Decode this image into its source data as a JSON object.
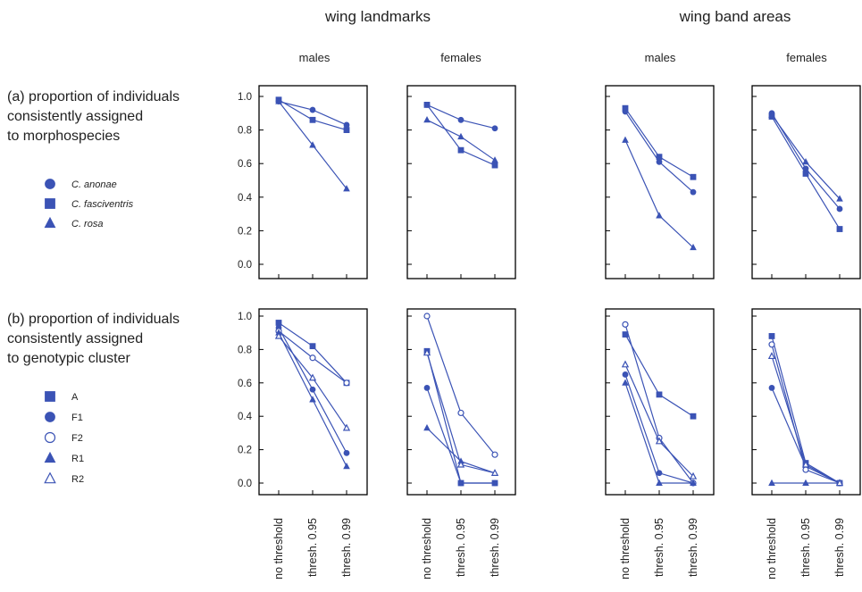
{
  "colors": {
    "series": "#3b53b5",
    "text": "#222222",
    "axis": "#000000"
  },
  "column_titles": [
    "wing landmarks",
    "wing band areas"
  ],
  "panel_subtitles": [
    "males",
    "females",
    "males",
    "females"
  ],
  "row_labels": {
    "a": [
      "(a) proportion of individuals",
      "consistently assigned",
      "to morphospecies"
    ],
    "b": [
      "(b) proportion of individuals",
      "consistently assigned",
      "to genotypic cluster"
    ]
  },
  "legend_a": [
    {
      "label": "C. anonae",
      "marker": "circle-filled",
      "italic": true
    },
    {
      "label": "C. fasciventris",
      "marker": "square-filled",
      "italic": true
    },
    {
      "label": "C. rosa",
      "marker": "triangle-filled",
      "italic": true
    }
  ],
  "legend_b": [
    {
      "label": "A",
      "marker": "square-filled",
      "italic": false
    },
    {
      "label": "F1",
      "marker": "circle-filled",
      "italic": false
    },
    {
      "label": "F2",
      "marker": "circle-open",
      "italic": false
    },
    {
      "label": "R1",
      "marker": "triangle-filled",
      "italic": false
    },
    {
      "label": "R2",
      "marker": "triangle-open",
      "italic": false
    }
  ],
  "chart_data": [
    {
      "type": "line",
      "row": "a",
      "column": "wing landmarks",
      "subtitle": "males",
      "categories": [
        "no threshold",
        "thresh. 0.95",
        "thresh. 0.99"
      ],
      "ylim": [
        0,
        1
      ],
      "yticks": [
        "0.0",
        "0.2",
        "0.4",
        "0.6",
        "0.8",
        "1.0"
      ],
      "series": [
        {
          "name": "C. anonae",
          "marker": "circle-filled",
          "values": [
            0.97,
            0.92,
            0.83
          ]
        },
        {
          "name": "C. fasciventris",
          "marker": "square-filled",
          "values": [
            0.98,
            0.86,
            0.8
          ]
        },
        {
          "name": "C. rosa",
          "marker": "triangle-filled",
          "values": [
            0.97,
            0.71,
            0.45
          ]
        }
      ]
    },
    {
      "type": "line",
      "row": "a",
      "column": "wing landmarks",
      "subtitle": "females",
      "categories": [
        "no threshold",
        "thresh. 0.95",
        "thresh. 0.99"
      ],
      "ylim": [
        0,
        1
      ],
      "series": [
        {
          "name": "C. anonae",
          "marker": "circle-filled",
          "values": [
            0.95,
            0.86,
            0.81
          ]
        },
        {
          "name": "C. fasciventris",
          "marker": "square-filled",
          "values": [
            0.95,
            0.68,
            0.59
          ]
        },
        {
          "name": "C. rosa",
          "marker": "triangle-filled",
          "values": [
            0.86,
            0.76,
            0.62
          ]
        }
      ]
    },
    {
      "type": "line",
      "row": "a",
      "column": "wing band areas",
      "subtitle": "males",
      "categories": [
        "no threshold",
        "thresh. 0.95",
        "thresh. 0.99"
      ],
      "ylim": [
        0,
        1
      ],
      "series": [
        {
          "name": "C. anonae",
          "marker": "circle-filled",
          "values": [
            0.91,
            0.61,
            0.43
          ]
        },
        {
          "name": "C. fasciventris",
          "marker": "square-filled",
          "values": [
            0.93,
            0.64,
            0.52
          ]
        },
        {
          "name": "C. rosa",
          "marker": "triangle-filled",
          "values": [
            0.74,
            0.29,
            0.1
          ]
        }
      ]
    },
    {
      "type": "line",
      "row": "a",
      "column": "wing band areas",
      "subtitle": "females",
      "categories": [
        "no threshold",
        "thresh. 0.95",
        "thresh. 0.99"
      ],
      "ylim": [
        0,
        1
      ],
      "series": [
        {
          "name": "C. anonae",
          "marker": "circle-filled",
          "values": [
            0.9,
            0.57,
            0.33
          ]
        },
        {
          "name": "C. fasciventris",
          "marker": "square-filled",
          "values": [
            0.88,
            0.54,
            0.21
          ]
        },
        {
          "name": "C. rosa",
          "marker": "triangle-filled",
          "values": [
            0.89,
            0.61,
            0.39
          ]
        }
      ]
    },
    {
      "type": "line",
      "row": "b",
      "column": "wing landmarks",
      "subtitle": "males",
      "categories": [
        "no threshold",
        "thresh. 0.95",
        "thresh. 0.99"
      ],
      "ylim": [
        0,
        1
      ],
      "yticks": [
        "0.0",
        "0.2",
        "0.4",
        "0.6",
        "0.8",
        "1.0"
      ],
      "series": [
        {
          "name": "A",
          "marker": "square-filled",
          "values": [
            0.96,
            0.82,
            0.6
          ]
        },
        {
          "name": "F1",
          "marker": "circle-filled",
          "values": [
            0.93,
            0.56,
            0.18
          ]
        },
        {
          "name": "F2",
          "marker": "circle-open",
          "values": [
            0.91,
            0.75,
            0.6
          ]
        },
        {
          "name": "R1",
          "marker": "triangle-filled",
          "values": [
            0.9,
            0.5,
            0.1
          ]
        },
        {
          "name": "R2",
          "marker": "triangle-open",
          "values": [
            0.88,
            0.63,
            0.33
          ]
        }
      ]
    },
    {
      "type": "line",
      "row": "b",
      "column": "wing landmarks",
      "subtitle": "females",
      "categories": [
        "no threshold",
        "thresh. 0.95",
        "thresh. 0.99"
      ],
      "ylim": [
        0,
        1
      ],
      "series": [
        {
          "name": "A",
          "marker": "square-filled",
          "values": [
            0.79,
            0.0,
            0.0
          ]
        },
        {
          "name": "F1",
          "marker": "circle-filled",
          "values": [
            0.57,
            0.0,
            0.0
          ]
        },
        {
          "name": "F2",
          "marker": "circle-open",
          "values": [
            1.0,
            0.42,
            0.17
          ]
        },
        {
          "name": "R1",
          "marker": "triangle-filled",
          "values": [
            0.33,
            0.13,
            0.06
          ]
        },
        {
          "name": "R2",
          "marker": "triangle-open",
          "values": [
            0.78,
            0.11,
            0.06
          ]
        }
      ]
    },
    {
      "type": "line",
      "row": "b",
      "column": "wing band areas",
      "subtitle": "males",
      "categories": [
        "no threshold",
        "thresh. 0.95",
        "thresh. 0.99"
      ],
      "ylim": [
        0,
        1
      ],
      "series": [
        {
          "name": "A",
          "marker": "square-filled",
          "values": [
            0.89,
            0.53,
            0.4
          ]
        },
        {
          "name": "F1",
          "marker": "circle-filled",
          "values": [
            0.65,
            0.06,
            0.0
          ]
        },
        {
          "name": "F2",
          "marker": "circle-open",
          "values": [
            0.95,
            0.27,
            0.0
          ]
        },
        {
          "name": "R1",
          "marker": "triangle-filled",
          "values": [
            0.6,
            0.0,
            0.0
          ]
        },
        {
          "name": "R2",
          "marker": "triangle-open",
          "values": [
            0.71,
            0.25,
            0.04
          ]
        }
      ]
    },
    {
      "type": "line",
      "row": "b",
      "column": "wing band areas",
      "subtitle": "females",
      "categories": [
        "no threshold",
        "thresh. 0.95",
        "thresh. 0.99"
      ],
      "ylim": [
        0,
        1
      ],
      "series": [
        {
          "name": "A",
          "marker": "square-filled",
          "values": [
            0.88,
            0.12,
            0.0
          ]
        },
        {
          "name": "F1",
          "marker": "circle-filled",
          "values": [
            0.57,
            0.1,
            0.0
          ]
        },
        {
          "name": "F2",
          "marker": "circle-open",
          "values": [
            0.83,
            0.08,
            0.0
          ]
        },
        {
          "name": "R1",
          "marker": "triangle-filled",
          "values": [
            0.0,
            0.0,
            0.0
          ]
        },
        {
          "name": "R2",
          "marker": "triangle-open",
          "values": [
            0.76,
            0.11,
            0.0
          ]
        }
      ]
    }
  ]
}
